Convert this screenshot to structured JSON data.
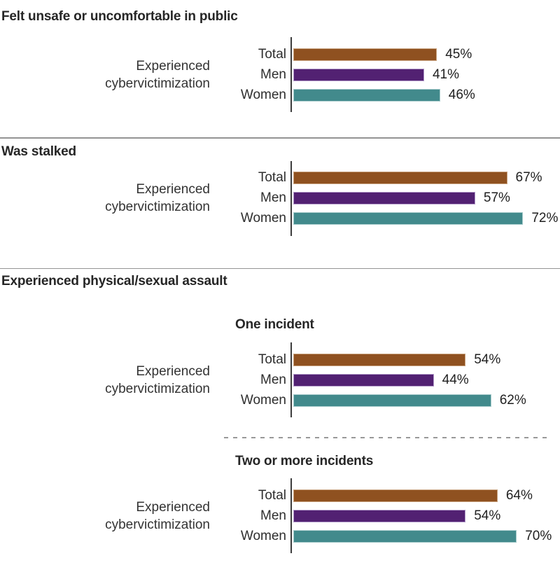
{
  "ui": {
    "axis_label_line1": "Experienced",
    "axis_label_line2": "cybervictimization",
    "palette": {
      "total": "#8F5120",
      "total_border": "#C8A27F",
      "men": "#522172",
      "men_border": "#B29BC9",
      "women": "#428A8C",
      "women_border": "#A8CCCC"
    },
    "separator_color": "#999999",
    "axis_line_color": "#3d3d3d"
  },
  "chart_data": [
    {
      "type": "bar",
      "orientation": "horizontal",
      "section_title": "Felt unsafe or uncomfortable in public",
      "subtitle": "",
      "ylabel": "Experienced cybervictimization",
      "categories": [
        "Total",
        "Men",
        "Women"
      ],
      "values": [
        45,
        41,
        46
      ],
      "value_labels": [
        "45%",
        "41%",
        "46%"
      ],
      "xlim": [
        0,
        100
      ],
      "grid": false,
      "legend": "none",
      "series_colors": [
        "#8F5120",
        "#522172",
        "#428A8C"
      ]
    },
    {
      "type": "bar",
      "orientation": "horizontal",
      "section_title": "Was stalked",
      "subtitle": "",
      "ylabel": "Experienced cybervictimization",
      "categories": [
        "Total",
        "Men",
        "Women"
      ],
      "values": [
        67,
        57,
        72
      ],
      "value_labels": [
        "67%",
        "57%",
        "72%"
      ],
      "xlim": [
        0,
        100
      ],
      "grid": false,
      "legend": "none",
      "series_colors": [
        "#8F5120",
        "#522172",
        "#428A8C"
      ]
    },
    {
      "type": "bar",
      "orientation": "horizontal",
      "section_title": "Experienced physical/sexual assault",
      "subtitle": "One incident",
      "ylabel": "Experienced cybervictimization",
      "categories": [
        "Total",
        "Men",
        "Women"
      ],
      "values": [
        54,
        44,
        62
      ],
      "value_labels": [
        "54%",
        "44%",
        "62%"
      ],
      "xlim": [
        0,
        100
      ],
      "grid": false,
      "legend": "none",
      "series_colors": [
        "#8F5120",
        "#522172",
        "#428A8C"
      ]
    },
    {
      "type": "bar",
      "orientation": "horizontal",
      "section_title": "Experienced physical/sexual assault",
      "subtitle": "Two or more incidents",
      "ylabel": "Experienced cybervictimization",
      "categories": [
        "Total",
        "Men",
        "Women"
      ],
      "values": [
        64,
        54,
        70
      ],
      "value_labels": [
        "64%",
        "54%",
        "70%"
      ],
      "xlim": [
        0,
        100
      ],
      "grid": false,
      "legend": "none",
      "series_colors": [
        "#8F5120",
        "#522172",
        "#428A8C"
      ]
    }
  ]
}
